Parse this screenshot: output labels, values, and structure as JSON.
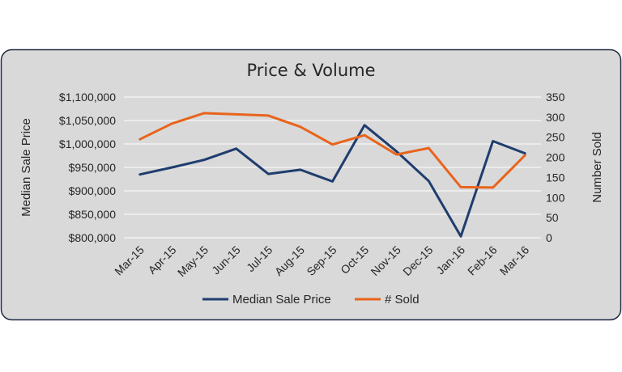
{
  "chart_data": {
    "type": "line",
    "title": "Price & Volume",
    "categories": [
      "Mar-15",
      "Apr-15",
      "May-15",
      "Jun-15",
      "Jul-15",
      "Aug-15",
      "Sep-15",
      "Oct-15",
      "Nov-15",
      "Dec-15",
      "Jan-16",
      "Feb-16",
      "Mar-16"
    ],
    "y_left": {
      "label": "Median Sale Price",
      "range": [
        800000,
        1100000
      ],
      "ticks": [
        800000,
        850000,
        900000,
        950000,
        1000000,
        1050000,
        1100000
      ],
      "tick_labels": [
        "$800,000",
        "$850,000",
        "$900,000",
        "$950,000",
        "$1,000,000",
        "$1,050,000",
        "$1,100,000"
      ]
    },
    "y_right": {
      "label": "Number Sold",
      "range": [
        0,
        350
      ],
      "ticks": [
        0,
        50,
        100,
        150,
        200,
        250,
        300,
        350
      ],
      "tick_labels": [
        "0",
        "50",
        "100",
        "150",
        "200",
        "250",
        "300",
        "350"
      ]
    },
    "series": [
      {
        "name": "Median Sale Price",
        "axis": "left",
        "color": "#1f3d6e",
        "values": [
          935000,
          950000,
          966000,
          990000,
          936000,
          945000,
          920000,
          1040000,
          984000,
          921000,
          803000,
          1006000,
          980000
        ]
      },
      {
        "name": "# Sold",
        "axis": "right",
        "color": "#e8641c",
        "values": [
          245,
          284,
          310,
          307,
          304,
          276,
          232,
          255,
          207,
          223,
          126,
          125,
          205
        ]
      }
    ],
    "grid": true,
    "legend_position": "bottom"
  }
}
